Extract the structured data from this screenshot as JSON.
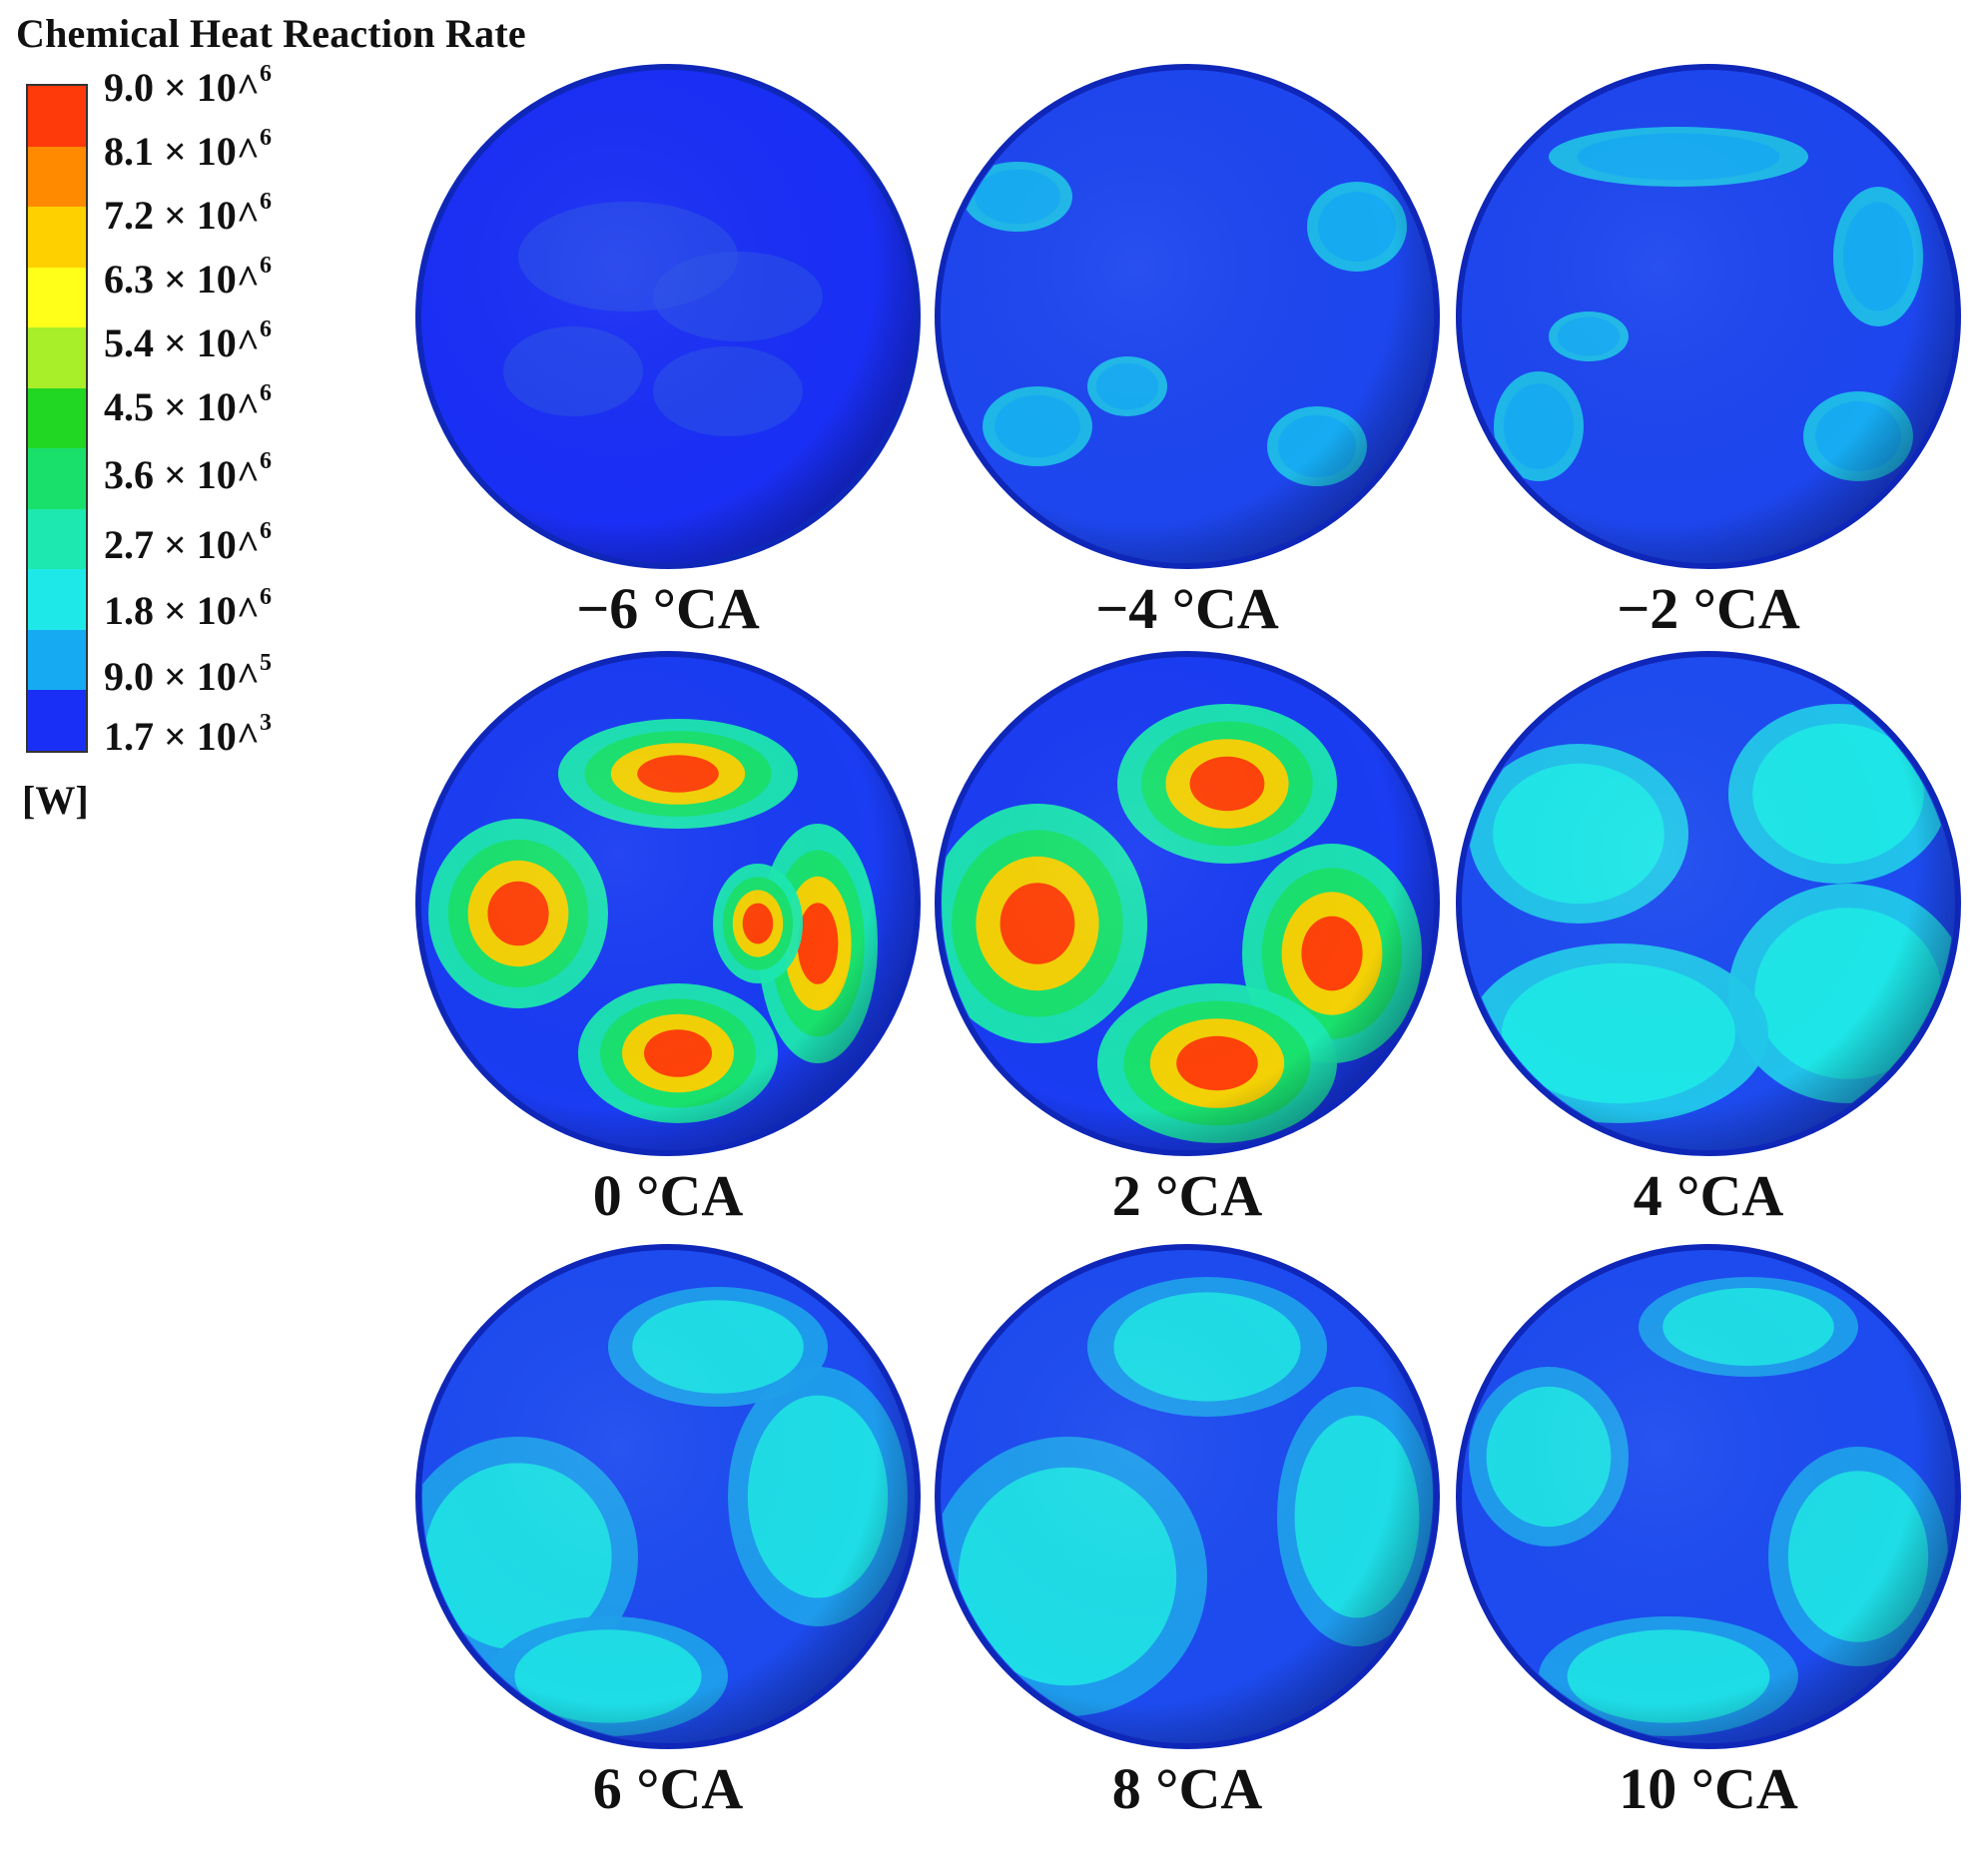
{
  "legend": {
    "title": "Chemical Heat Reaction Rate",
    "unit": "[W]",
    "ticks": [
      {
        "mant": "9.0",
        "exp": "6"
      },
      {
        "mant": "8.1",
        "exp": "6"
      },
      {
        "mant": "7.2",
        "exp": "6"
      },
      {
        "mant": "6.3",
        "exp": "6"
      },
      {
        "mant": "5.4",
        "exp": "6"
      },
      {
        "mant": "4.5",
        "exp": "6"
      },
      {
        "mant": "3.6",
        "exp": "6"
      },
      {
        "mant": "2.7",
        "exp": "6"
      },
      {
        "mant": "1.8",
        "exp": "6"
      },
      {
        "mant": "9.0",
        "exp": "5"
      },
      {
        "mant": "1.7",
        "exp": "3"
      }
    ],
    "colors": [
      "#ff3a0a",
      "#ff8a00",
      "#ffd000",
      "#ffff1a",
      "#a8ef2a",
      "#22d624",
      "#19e06a",
      "#1ce8b0",
      "#1fe8e8",
      "#16aaf2",
      "#1a2ff5"
    ]
  },
  "panels": [
    {
      "caption": "−6 °CA",
      "level": 0
    },
    {
      "caption": "−4 °CA",
      "level": 1
    },
    {
      "caption": "−2 °CA",
      "level": 1
    },
    {
      "caption": "0 °CA",
      "level": 4
    },
    {
      "caption": "2 °CA",
      "level": 4
    },
    {
      "caption": "4 °CA",
      "level": 3
    },
    {
      "caption": "6 °CA",
      "level": 2
    },
    {
      "caption": "8 °CA",
      "level": 2
    },
    {
      "caption": "10 °CA",
      "level": 2
    }
  ]
}
